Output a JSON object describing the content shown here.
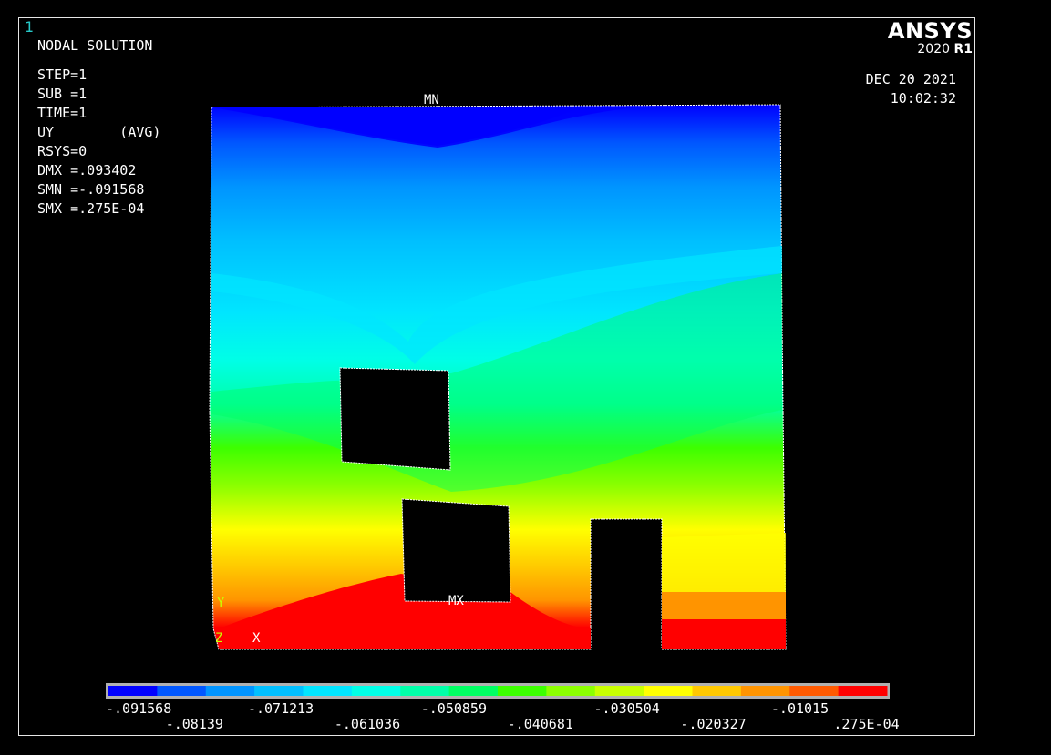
{
  "window_number": "1",
  "title": "NODAL SOLUTION",
  "info": {
    "step": "STEP=1",
    "sub": "SUB =1",
    "time": "TIME=1",
    "uy": "UY        (AVG)",
    "rsys": "RSYS=0",
    "dmx": "DMX =.093402",
    "smn": "SMN =-.091568",
    "smx": "SMX =.275E-04"
  },
  "brand": {
    "name": "ANSYS",
    "version": "2020",
    "release": "R1"
  },
  "date": "DEC 20 2021",
  "time_of_day": "10:02:32",
  "markers": {
    "min": "MN",
    "max": "MX"
  },
  "triad": {
    "y": "Y",
    "z": "Z",
    "x": "X"
  },
  "legend": {
    "colors": [
      "#0000ff",
      "#0057ff",
      "#0094ff",
      "#00bfff",
      "#00e5ff",
      "#00ffe6",
      "#00ffa8",
      "#00ff63",
      "#3dff00",
      "#8cff00",
      "#c8ff00",
      "#ffff00",
      "#ffc800",
      "#ff9400",
      "#ff5a00",
      "#ff0000"
    ],
    "labels_top": [
      "-.091568",
      "-.071213",
      "-.050859",
      "-.030504",
      "-.01015"
    ],
    "labels_bottom": [
      "-.08139",
      "-.061036",
      "-.040681",
      "-.020327",
      ".275E-04"
    ]
  }
}
